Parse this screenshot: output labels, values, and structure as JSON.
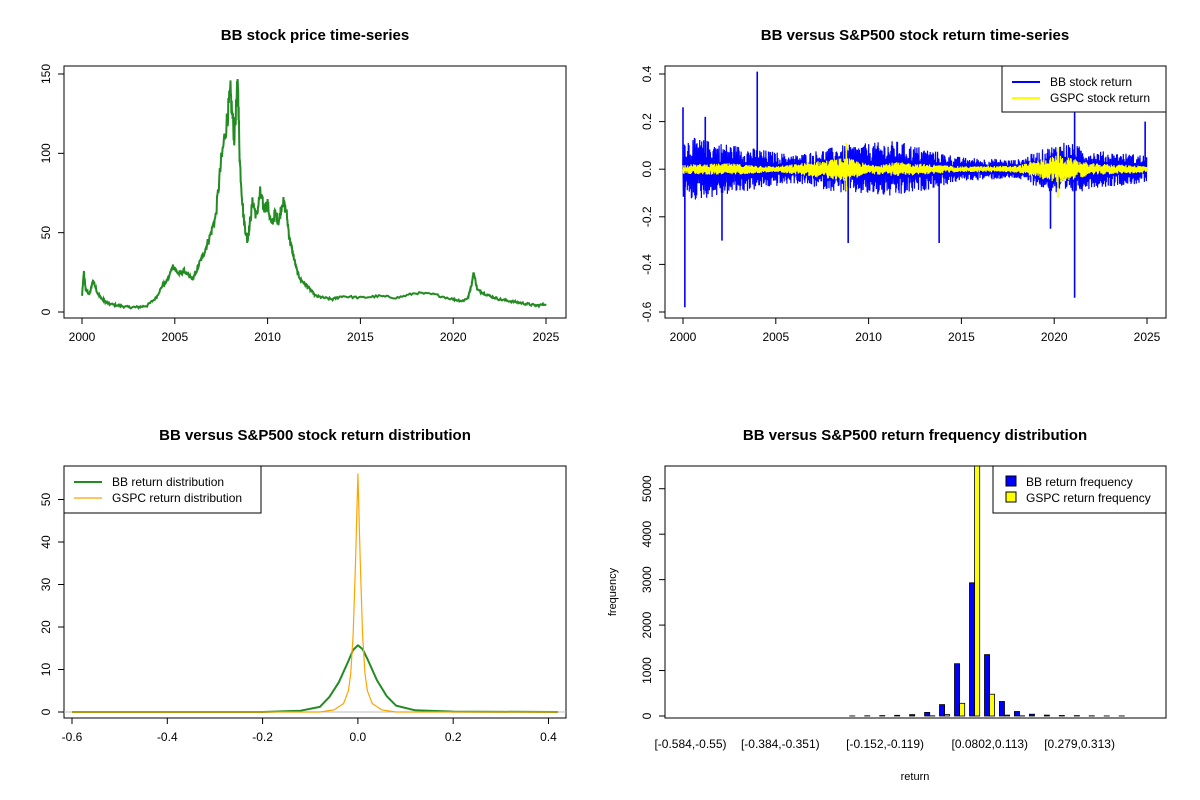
{
  "chart_data": [
    {
      "type": "line",
      "title": "BB stock price time-series",
      "xlabel": "",
      "ylabel": "",
      "xlim": [
        2000,
        2025
      ],
      "ylim": [
        0,
        150
      ],
      "xticks": [
        "2000",
        "2005",
        "2010",
        "2015",
        "2020",
        "2025"
      ],
      "yticks": [
        "0",
        "50",
        "100",
        "150"
      ],
      "colors": {
        "series": "#228b22"
      },
      "series": [
        {
          "x": [
            2000.0,
            2000.1,
            2000.2,
            2000.4,
            2000.6,
            2000.8,
            2001.0,
            2001.2,
            2001.5,
            2002.0,
            2002.5,
            2003.0,
            2003.5,
            2004.0,
            2004.3,
            2004.6,
            2004.9,
            2005.2,
            2005.5,
            2005.8,
            2006.0,
            2006.3,
            2006.6,
            2006.9,
            2007.2,
            2007.5,
            2007.8,
            2008.0,
            2008.2,
            2008.4,
            2008.5,
            2008.7,
            2008.9,
            2009.0,
            2009.2,
            2009.4,
            2009.6,
            2009.8,
            2010.0,
            2010.2,
            2010.4,
            2010.6,
            2010.8,
            2011.0,
            2011.2,
            2011.4,
            2011.6,
            2011.8,
            2012.0,
            2012.3,
            2012.6,
            2013.0,
            2013.5,
            2014.0,
            2015.0,
            2016.0,
            2017.0,
            2018.0,
            2019.0,
            2020.0,
            2020.5,
            2020.8,
            2021.0,
            2021.1,
            2021.3,
            2021.6,
            2022.0,
            2022.5,
            2023.0,
            2023.5,
            2024.0,
            2024.5,
            2025.0
          ],
          "values": [
            10,
            25,
            14,
            11,
            20,
            13,
            9,
            7,
            5,
            4,
            3,
            3,
            4,
            9,
            16,
            20,
            29,
            24,
            26,
            22,
            21,
            30,
            38,
            48,
            60,
            95,
            120,
            138,
            110,
            145,
            95,
            60,
            45,
            52,
            70,
            60,
            75,
            65,
            68,
            55,
            62,
            57,
            70,
            64,
            45,
            35,
            25,
            20,
            18,
            14,
            10,
            9,
            8,
            10,
            9,
            10,
            9,
            12,
            11,
            8,
            7,
            9,
            18,
            25,
            14,
            12,
            10,
            8,
            7,
            6,
            5,
            4,
            5
          ]
        }
      ]
    },
    {
      "type": "line",
      "title": "BB versus S&P500 stock return time-series",
      "xlabel": "",
      "ylabel": "",
      "xlim": [
        2000,
        2025
      ],
      "ylim": [
        -0.6,
        0.4
      ],
      "xticks": [
        "2000",
        "2005",
        "2010",
        "2015",
        "2020",
        "2025"
      ],
      "yticks": [
        "-0.6",
        "-0.4",
        "-0.2",
        "0.0",
        "0.2",
        "0.4"
      ],
      "legend_position": "top-right",
      "series": [
        {
          "name": "BB stock return",
          "color": "#0000ff",
          "spikes": [
            [
              2000.1,
              -0.58
            ],
            [
              2000.0,
              0.26
            ],
            [
              2004.0,
              0.41
            ],
            [
              2008.9,
              -0.31
            ],
            [
              2013.8,
              -0.31
            ],
            [
              2021.1,
              -0.54
            ],
            [
              2021.1,
              0.34
            ],
            [
              2019.8,
              -0.25
            ],
            [
              2002.1,
              -0.3
            ],
            [
              2001.2,
              0.22
            ],
            [
              2024.9,
              0.2
            ]
          ],
          "envelope": [
            [
              2000,
              0.14
            ],
            [
              2003,
              0.1
            ],
            [
              2006,
              0.06
            ],
            [
              2008.5,
              0.1
            ],
            [
              2011.5,
              0.12
            ],
            [
              2015,
              0.05
            ],
            [
              2018,
              0.04
            ],
            [
              2020.5,
              0.12
            ],
            [
              2022,
              0.08
            ],
            [
              2025,
              0.06
            ]
          ]
        },
        {
          "name": "GSPC stock return",
          "color": "#ffff00",
          "spikes": [
            [
              2008.8,
              0.11
            ],
            [
              2008.8,
              -0.09
            ],
            [
              2020.2,
              0.09
            ],
            [
              2020.2,
              -0.12
            ]
          ],
          "envelope": [
            [
              2000,
              0.02
            ],
            [
              2002.5,
              0.025
            ],
            [
              2005,
              0.012
            ],
            [
              2008.8,
              0.05
            ],
            [
              2010,
              0.02
            ],
            [
              2011.6,
              0.03
            ],
            [
              2015,
              0.012
            ],
            [
              2018,
              0.015
            ],
            [
              2020.2,
              0.06
            ],
            [
              2022,
              0.025
            ],
            [
              2025,
              0.015
            ]
          ]
        }
      ]
    },
    {
      "type": "line",
      "title": "BB versus S&P500 stock return distribution",
      "xlabel": "",
      "ylabel": "",
      "xlim": [
        -0.6,
        0.42
      ],
      "ylim": [
        0,
        56
      ],
      "xticks": [
        "-0.6",
        "-0.4",
        "-0.2",
        "0.0",
        "0.2",
        "0.4"
      ],
      "yticks": [
        "0",
        "10",
        "20",
        "30",
        "40",
        "50"
      ],
      "legend_position": "top-left",
      "series": [
        {
          "name": "BB return distribution",
          "color": "#228b22",
          "x": [
            -0.6,
            -0.2,
            -0.12,
            -0.08,
            -0.06,
            -0.04,
            -0.02,
            -0.01,
            0.0,
            0.01,
            0.02,
            0.04,
            0.06,
            0.08,
            0.12,
            0.2,
            0.42
          ],
          "y": [
            0,
            0,
            0.3,
            1.2,
            3.5,
            7,
            12,
            14.6,
            15.7,
            14.8,
            12.5,
            7.5,
            3.8,
            1.5,
            0.4,
            0.1,
            0
          ]
        },
        {
          "name": "GSPC return distribution",
          "color": "#ffa500",
          "x": [
            -0.6,
            -0.08,
            -0.05,
            -0.03,
            -0.02,
            -0.015,
            -0.01,
            -0.005,
            0.0,
            0.005,
            0.01,
            0.015,
            0.02,
            0.03,
            0.05,
            0.08,
            0.42
          ],
          "y": [
            0,
            0,
            0.5,
            2,
            5,
            9,
            18,
            35,
            56,
            35,
            18,
            9,
            5,
            2,
            0.5,
            0,
            0
          ]
        }
      ]
    },
    {
      "type": "bar",
      "title": "BB versus S&P500 return frequency distribution",
      "xlabel": "return",
      "ylabel": "frequency",
      "ylim": [
        0,
        5500
      ],
      "yticks": [
        "0",
        "1000",
        "2000",
        "3000",
        "4000",
        "5000"
      ],
      "legend_position": "top-right",
      "category_labels": [
        "[-0.584,-0.55)",
        "[-0.384,-0.351)",
        "[-0.152,-0.119)",
        "[0.0802,0.113)",
        "[0.279,0.313)"
      ],
      "category_label_positions": [
        0,
        6,
        13,
        20,
        26
      ],
      "series": [
        {
          "name": "BB return frequency",
          "color": "#0000ff",
          "values": [
            1,
            0,
            0,
            0,
            0,
            0,
            0,
            0,
            0,
            0,
            0,
            2,
            5,
            8,
            15,
            30,
            80,
            250,
            1150,
            2930,
            1350,
            320,
            100,
            40,
            20,
            10,
            8,
            5,
            3,
            2,
            1
          ]
        },
        {
          "name": "GSPC return frequency",
          "color": "#ffff00",
          "values": [
            0,
            0,
            0,
            0,
            0,
            0,
            0,
            0,
            0,
            0,
            0,
            0,
            0,
            0,
            0,
            0,
            5,
            30,
            280,
            5500,
            480,
            20,
            5,
            0,
            0,
            0,
            0,
            0,
            0,
            0,
            0
          ]
        }
      ]
    }
  ]
}
